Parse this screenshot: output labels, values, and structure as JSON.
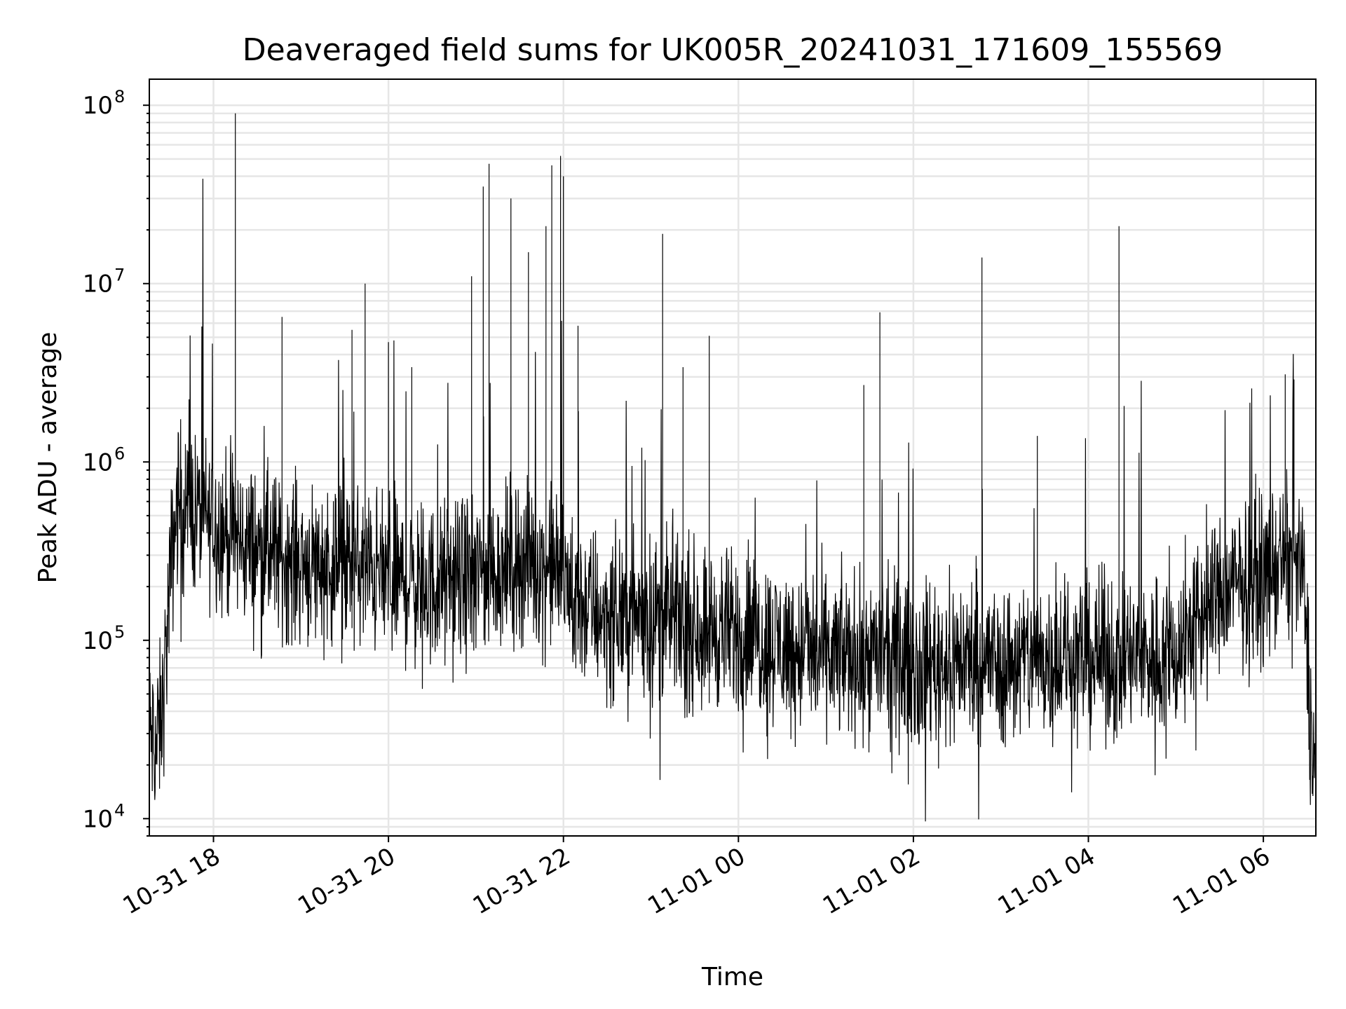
{
  "chart_data": {
    "type": "line",
    "title": "Deaveraged field sums for UK005R_20241031_171609_155569",
    "xlabel": "Time",
    "ylabel": "Peak ADU - average",
    "yscale": "log",
    "ylim": [
      8000,
      140000000
    ],
    "xlim": [
      "2024-10-31 17:16",
      "2024-11-01 06:36"
    ],
    "grid": true,
    "x_ticks": [
      {
        "value": "2024-10-31 18:00",
        "label": "10-31 18"
      },
      {
        "value": "2024-10-31 20:00",
        "label": "10-31 20"
      },
      {
        "value": "2024-10-31 22:00",
        "label": "10-31 22"
      },
      {
        "value": "2024-11-01 00:00",
        "label": "11-01 00"
      },
      {
        "value": "2024-11-01 02:00",
        "label": "11-01 02"
      },
      {
        "value": "2024-11-01 04:00",
        "label": "11-01 04"
      },
      {
        "value": "2024-11-01 06:00",
        "label": "11-01 06"
      }
    ],
    "y_ticks": [
      {
        "value": 10000,
        "base": "10",
        "exp": "4"
      },
      {
        "value": 100000,
        "base": "10",
        "exp": "5"
      },
      {
        "value": 1000000,
        "base": "10",
        "exp": "6"
      },
      {
        "value": 10000000,
        "base": "10",
        "exp": "7"
      },
      {
        "value": 100000000,
        "base": "10",
        "exp": "8"
      }
    ],
    "series": [
      {
        "color": "#000000",
        "baseline": {
          "x": [
            "2024-10-31 17:16",
            "2024-10-31 17:21",
            "2024-10-31 17:25",
            "2024-10-31 17:30",
            "2024-10-31 17:35",
            "2024-10-31 17:45",
            "2024-10-31 18:00",
            "2024-10-31 18:20",
            "2024-10-31 18:45",
            "2024-10-31 19:00",
            "2024-10-31 19:30",
            "2024-10-31 20:00",
            "2024-10-31 20:30",
            "2024-10-31 21:00",
            "2024-10-31 21:30",
            "2024-10-31 22:00",
            "2024-10-31 22:05",
            "2024-10-31 22:30",
            "2024-10-31 23:00",
            "2024-10-31 23:30",
            "2024-11-01 00:00",
            "2024-11-01 00:30",
            "2024-11-01 01:00",
            "2024-11-01 01:30",
            "2024-11-01 02:00",
            "2024-11-01 02:30",
            "2024-11-01 03:00",
            "2024-11-01 03:30",
            "2024-11-01 04:00",
            "2024-11-01 04:30",
            "2024-11-01 05:00",
            "2024-11-01 05:20",
            "2024-11-01 05:40",
            "2024-11-01 06:00",
            "2024-11-01 06:20",
            "2024-11-01 06:28",
            "2024-11-01 06:32",
            "2024-11-01 06:35"
          ],
          "y": [
            30000,
            25000,
            40000,
            200000,
            600000,
            550000,
            450000,
            350000,
            300000,
            280000,
            260000,
            230000,
            200000,
            230000,
            280000,
            250000,
            170000,
            140000,
            140000,
            120000,
            110000,
            95000,
            80000,
            85000,
            75000,
            80000,
            75000,
            80000,
            80000,
            80000,
            85000,
            150000,
            200000,
            220000,
            300000,
            200000,
            40000,
            20000
          ]
        },
        "spikes": [
          {
            "x": "2024-10-31 18:15",
            "y": 90000000
          },
          {
            "x": "2024-10-31 18:47",
            "y": 6500000
          },
          {
            "x": "2024-10-31 19:44",
            "y": 10000000
          },
          {
            "x": "2024-10-31 19:35",
            "y": 5500000
          },
          {
            "x": "2024-10-31 20:00",
            "y": 4700000
          },
          {
            "x": "2024-10-31 20:16",
            "y": 3400000
          },
          {
            "x": "2024-10-31 20:57",
            "y": 11000000
          },
          {
            "x": "2024-10-31 21:05",
            "y": 35000000
          },
          {
            "x": "2024-10-31 21:09",
            "y": 47000000
          },
          {
            "x": "2024-10-31 21:24",
            "y": 30000000
          },
          {
            "x": "2024-10-31 21:36",
            "y": 15000000
          },
          {
            "x": "2024-10-31 21:48",
            "y": 21000000
          },
          {
            "x": "2024-10-31 21:52",
            "y": 46000000
          },
          {
            "x": "2024-10-31 21:58",
            "y": 52000000
          },
          {
            "x": "2024-10-31 22:00",
            "y": 40000000
          },
          {
            "x": "2024-10-31 22:10",
            "y": 5800000
          },
          {
            "x": "2024-10-31 23:08",
            "y": 19000000
          },
          {
            "x": "2024-10-31 23:22",
            "y": 3400000
          },
          {
            "x": "2024-10-31 23:40",
            "y": 5100000
          },
          {
            "x": "2024-11-01 01:26",
            "y": 2700000
          },
          {
            "x": "2024-11-01 01:37",
            "y": 6900000
          },
          {
            "x": "2024-11-01 02:47",
            "y": 14000000
          },
          {
            "x": "2024-11-01 03:25",
            "y": 1400000
          },
          {
            "x": "2024-11-01 04:21",
            "y": 21000000
          },
          {
            "x": "2024-11-01 06:15",
            "y": 3100000
          },
          {
            "x": "2024-11-01 06:21",
            "y": 2900000
          }
        ]
      }
    ]
  }
}
